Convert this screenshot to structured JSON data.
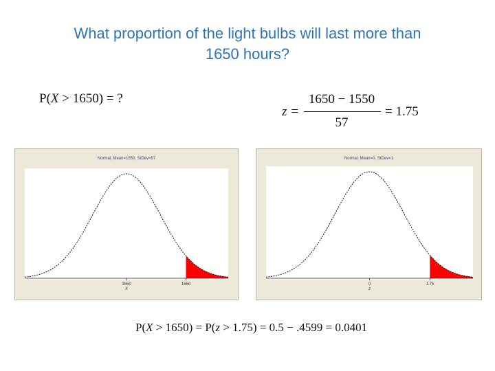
{
  "slide": {
    "title_line1": "What proportion of the light bulbs will last more than",
    "title_line2": "1650 hours?",
    "equations": {
      "prob_question_lhs": "P(",
      "prob_question_var": "X",
      "prob_question_rest": " > 1650) = ?",
      "z_lhs": "z = ",
      "z_numerator": "1650 − 1550",
      "z_denominator": "57",
      "z_rhs": "= 1.75",
      "answer_p1": "P(",
      "answer_var1": "X",
      "answer_mid": " > 1650) = P(",
      "answer_var2": "z",
      "answer_rest": " > 1.75) = 0.5 − .4599 = 0.0401"
    }
  },
  "colors": {
    "title": "#2e74b5",
    "shade": "#ff0000",
    "panel_bg": "#ece9d8"
  },
  "chart_data": [
    {
      "type": "area",
      "distribution": "normal",
      "title": "Normal, Mean=1550, StDev=57",
      "mean": 1550,
      "stdev": 57,
      "xlim": [
        1379,
        1721
      ],
      "xlabel": "X",
      "ticks": [
        {
          "value": 1550,
          "label": "1550"
        },
        {
          "value": 1650,
          "label": "1650"
        }
      ],
      "shade_from": 1650,
      "grid": false
    },
    {
      "type": "area",
      "distribution": "normal",
      "title": "Normal, Mean=0, StDev=1",
      "mean": 0,
      "stdev": 1,
      "xlim": [
        -3,
        3
      ],
      "xlabel": "z",
      "ticks": [
        {
          "value": 0,
          "label": "0"
        },
        {
          "value": 1.75,
          "label": "1.75"
        }
      ],
      "shade_from": 1.75,
      "grid": false
    }
  ]
}
